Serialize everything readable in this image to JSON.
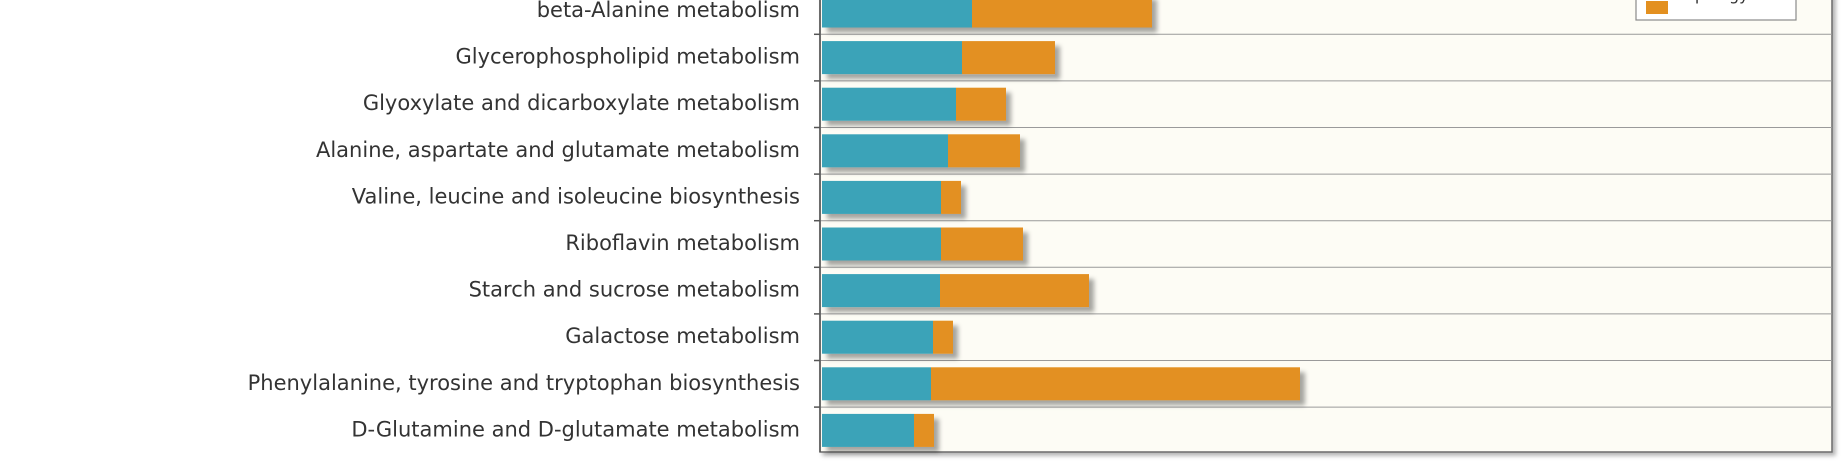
{
  "chart_data": {
    "type": "bar",
    "orientation": "horizontal",
    "stacked": true,
    "categories": [
      "beta-Alanine metabolism",
      "Glycerophospholipid metabolism",
      "Glyoxylate and dicarboxylate metabolism",
      "Alanine, aspartate and glutamate metabolism",
      "Valine, leucine and isoleucine biosynthesis",
      "Riboflavin metabolism",
      "Starch and sucrose metabolism",
      "Galactose metabolism",
      "Phenylalanine, tyrosine and tryptophan biosynthesis",
      "D-Glutamine and D-glutamate metabolism"
    ],
    "series": [
      {
        "color": "#3aa3b8",
        "values": [
          1.5,
          1.4,
          1.34,
          1.26,
          1.19,
          1.19,
          1.18,
          1.11,
          1.09,
          0.92
        ]
      },
      {
        "name": "Topology",
        "color": "#e39020",
        "values": [
          1.8,
          0.93,
          0.5,
          0.72,
          0.2,
          0.82,
          1.49,
          0.2,
          3.69,
          0.2
        ]
      }
    ],
    "xlim": [
      0,
      10
    ],
    "grid": "horizontal",
    "legend_position": "top-right",
    "plot_background": "#fdfcf5"
  }
}
